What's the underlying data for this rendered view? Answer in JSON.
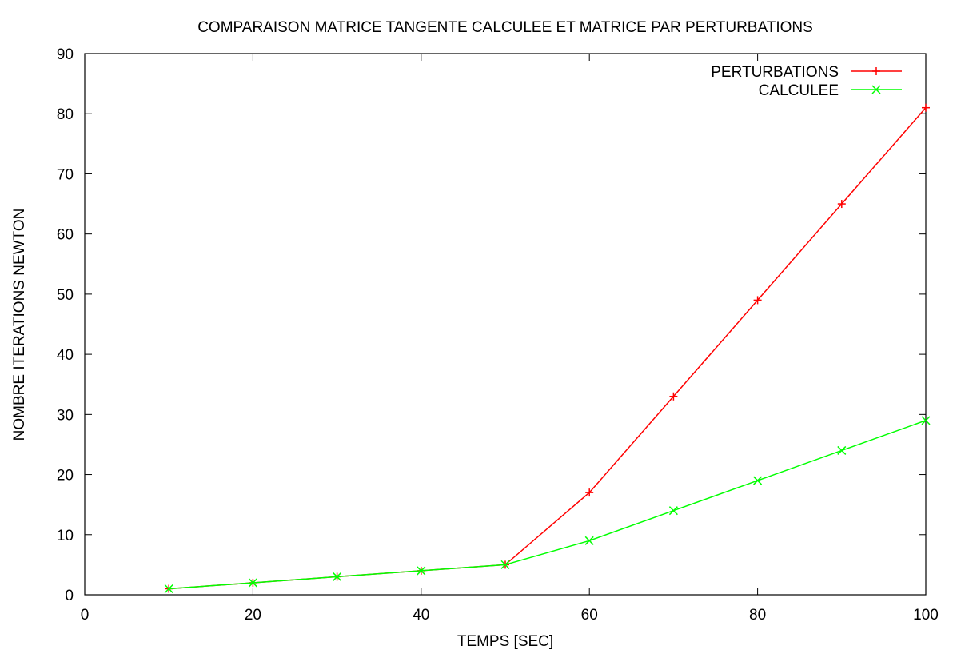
{
  "chart_data": {
    "type": "line",
    "title": "COMPARAISON MATRICE TANGENTE CALCULEE ET MATRICE PAR PERTURBATIONS",
    "xlabel": "TEMPS [SEC]",
    "ylabel": "NOMBRE ITERATIONS NEWTON",
    "xlim": [
      0,
      100
    ],
    "ylim": [
      0,
      90
    ],
    "xticks": [
      0,
      20,
      40,
      60,
      80,
      100
    ],
    "yticks": [
      0,
      10,
      20,
      30,
      40,
      50,
      60,
      70,
      80,
      90
    ],
    "grid": false,
    "legend_position": "top-right",
    "x": [
      10,
      20,
      30,
      40,
      50,
      60,
      70,
      80,
      90,
      100
    ],
    "series": [
      {
        "name": "PERTURBATIONS",
        "color": "#ff0000",
        "marker": "plus",
        "values": [
          1,
          2,
          3,
          4,
          5,
          17,
          33,
          49,
          65,
          81
        ]
      },
      {
        "name": "CALCULEE",
        "color": "#00ff00",
        "marker": "cross",
        "values": [
          1,
          2,
          3,
          4,
          5,
          9,
          14,
          19,
          24,
          29
        ]
      }
    ]
  }
}
